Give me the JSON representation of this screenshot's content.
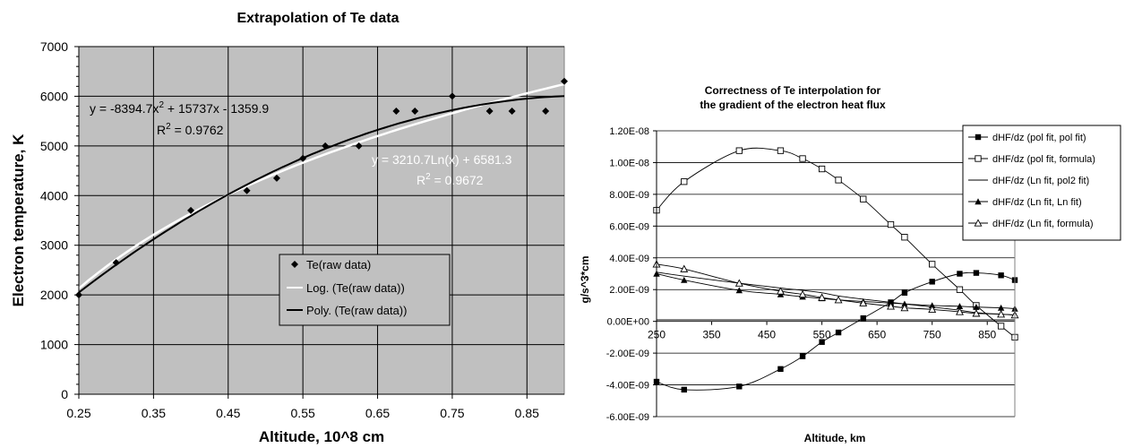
{
  "chart_data": [
    {
      "type": "scatter",
      "title": "Extrapolation of Te data",
      "xlabel": "Altitude, 10^8 cm",
      "ylabel": "Electron temperature, K",
      "xlim": [
        0.25,
        0.9
      ],
      "ylim": [
        0,
        7000
      ],
      "xticks": [
        0.25,
        0.35,
        0.45,
        0.55,
        0.65,
        0.75,
        0.85
      ],
      "xtick_labels": [
        "0.25",
        "0.35",
        "0.45",
        "0.55",
        "0.65",
        "0.75",
        "0.85"
      ],
      "yticks": [
        0,
        1000,
        2000,
        3000,
        4000,
        5000,
        6000,
        7000
      ],
      "ytick_labels": [
        "0",
        "1000",
        "2000",
        "3000",
        "4000",
        "5000",
        "6000",
        "7000"
      ],
      "grid": true,
      "plot_background": "#C0C0C0",
      "series": [
        {
          "name": "Te(raw data)",
          "x": [
            0.25,
            0.3,
            0.4,
            0.475,
            0.515,
            0.55,
            0.58,
            0.625,
            0.675,
            0.7,
            0.75,
            0.8,
            0.83,
            0.875,
            0.9
          ],
          "y": [
            2000,
            2650,
            3700,
            4100,
            4350,
            4750,
            5000,
            5000,
            5700,
            5700,
            6000,
            5700,
            5700,
            5700,
            6300
          ],
          "marker": "diamond",
          "color": "#000000"
        },
        {
          "name": "Log. (Te(raw data))",
          "fit": "log",
          "coefficients": {
            "a": 3210.7,
            "b": 6581.3
          },
          "color": "#FFFFFF"
        },
        {
          "name": "Poly. (Te(raw data))",
          "fit": "poly2",
          "coefficients": {
            "a": -8394.7,
            "b": 15737,
            "c": -1359.9
          },
          "color": "#000000"
        }
      ],
      "annotations": {
        "poly_eq_a": "y = -8394.7x",
        "poly_eq_b": " + 15737x - 1359.9",
        "poly_r2": " = 0.9762",
        "log_eq": "y = 3210.7Ln(x) + 6581.3",
        "log_r2": " = 0.9672",
        "r_letter": "R",
        "sq": "2"
      },
      "legend_position": "center-bottom"
    },
    {
      "type": "line",
      "title": [
        "Correctness of Te interpolation for",
        "the gradient of the electron heat flux"
      ],
      "xlabel": "Altitude, km",
      "ylabel": "g/s^3*cm",
      "xlim": [
        250,
        900
      ],
      "ylim": [
        -6e-09,
        1.2e-08
      ],
      "xticks": [
        250,
        350,
        450,
        550,
        650,
        750,
        850
      ],
      "xtick_labels": [
        "250",
        "350",
        "450",
        "550",
        "650",
        "750",
        "850"
      ],
      "yticks": [
        -6e-09,
        -4e-09,
        -2e-09,
        0,
        2e-09,
        4e-09,
        6e-09,
        8e-09,
        1e-08,
        1.2e-08
      ],
      "ytick_labels": [
        "-6.00E-09",
        "-4.00E-09",
        "-2.00E-09",
        "0.00E+00",
        "2.00E-09",
        "4.00E-09",
        "6.00E-09",
        "8.00E-09",
        "1.00E-08",
        "1.20E-08"
      ],
      "grid": "horizontal",
      "legend_position": "right",
      "series": [
        {
          "name": "dHF/dz (pol fit, pol fit)",
          "marker": "filled-square",
          "x": [
            250,
            300,
            400,
            475,
            515,
            550,
            580,
            625,
            675,
            700,
            750,
            800,
            830,
            875,
            900
          ],
          "y": [
            -3.8e-09,
            -4.3e-09,
            -4.1e-09,
            -3e-09,
            -2.2e-09,
            -1.3e-09,
            -7e-10,
            2e-10,
            1.2e-09,
            1.8e-09,
            2.5e-09,
            3e-09,
            3.05e-09,
            2.9e-09,
            2.6e-09
          ]
        },
        {
          "name": "dHF/dz (pol fit, formula)",
          "marker": "open-square",
          "x": [
            250,
            300,
            400,
            475,
            515,
            550,
            580,
            625,
            675,
            700,
            750,
            800,
            830,
            875,
            900
          ],
          "y": [
            7e-09,
            8.8e-09,
            1.075e-08,
            1.075e-08,
            1.025e-08,
            9.6e-09,
            8.9e-09,
            7.7e-09,
            6.1e-09,
            5.3e-09,
            3.6e-09,
            2e-09,
            1e-09,
            -3e-10,
            -1e-09
          ]
        },
        {
          "name": "dHF/dz (Ln fit, pol2 fit)",
          "marker": "none",
          "x": [
            250,
            300,
            400,
            475,
            515,
            550,
            580,
            625,
            675,
            700,
            750,
            800,
            830,
            875,
            900
          ],
          "y": [
            3.1e-09,
            2.85e-09,
            2.4e-09,
            2.1e-09,
            1.95e-09,
            1.8e-09,
            1.6e-09,
            1.4e-09,
            1.2e-09,
            1.1e-09,
            9e-10,
            7e-10,
            5.5e-10,
            4.5e-10,
            4e-10
          ]
        },
        {
          "name": "dHF/dz (Ln fit, Ln fit)",
          "marker": "filled-triangle",
          "x": [
            250,
            300,
            400,
            475,
            515,
            550,
            580,
            625,
            675,
            700,
            750,
            800,
            830,
            875,
            900
          ],
          "y": [
            3e-09,
            2.6e-09,
            1.95e-09,
            1.7e-09,
            1.55e-09,
            1.45e-09,
            1.35e-09,
            1.25e-09,
            1.15e-09,
            1.1e-09,
            1e-09,
            9.5e-10,
            9e-10,
            8.5e-10,
            8e-10
          ]
        },
        {
          "name": "dHF/dz (Ln fit, formula)",
          "marker": "open-triangle",
          "x": [
            250,
            300,
            400,
            475,
            515,
            550,
            580,
            625,
            675,
            700,
            750,
            800,
            830,
            875,
            900
          ],
          "y": [
            3.6e-09,
            3.3e-09,
            2.4e-09,
            1.9e-09,
            1.7e-09,
            1.5e-09,
            1.35e-09,
            1.15e-09,
            9.5e-10,
            8.5e-10,
            7.5e-10,
            6e-10,
            5e-10,
            4.5e-10,
            4e-10
          ]
        }
      ]
    }
  ]
}
